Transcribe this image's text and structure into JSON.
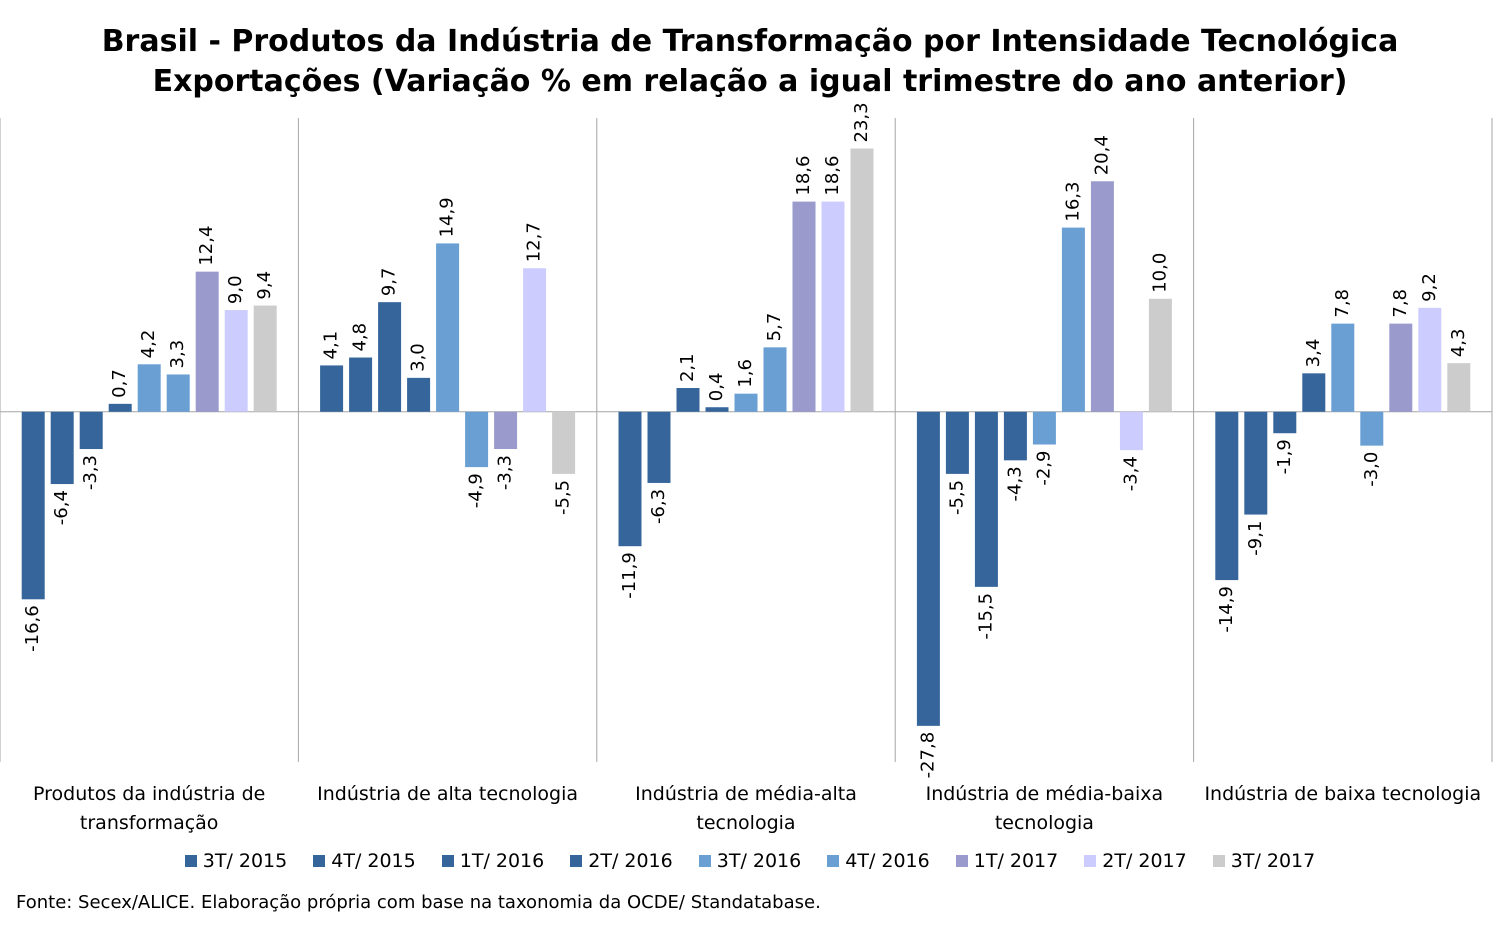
{
  "chart_data": {
    "type": "bar",
    "title": "Brasil - Produtos da Indústria de Transformação por Intensidade Tecnológica",
    "subtitle": "Exportações (Variação % em relação a igual trimestre do ano anterior)",
    "source": "Fonte: Secex/ALICE. Elaboração própria com base na taxonomia da OCDE/ Standatabase.",
    "categories": [
      "Produtos da indústria de transformação",
      "Indústria de alta tecnologia",
      "Indústria de média-alta tecnologia",
      "Indústria de média-baixa tecnologia",
      "Indústria de baixa tecnologia"
    ],
    "ylim": [
      -31,
      26
    ],
    "series": [
      {
        "name": "3T/ 2015",
        "color": "#35659a",
        "values": [
          -16.6,
          4.1,
          -11.9,
          -27.8,
          -14.9
        ],
        "value_labels": [
          "-16,6",
          "4,1",
          "-11,9",
          "-27,8",
          "-14,9"
        ]
      },
      {
        "name": "4T/ 2015",
        "color": "#35659a",
        "values": [
          -6.4,
          4.8,
          -6.3,
          -5.5,
          -9.1
        ],
        "value_labels": [
          "-6,4",
          "4,8",
          "-6,3",
          "-5,5",
          "-9,1"
        ]
      },
      {
        "name": "1T/ 2016",
        "color": "#35659a",
        "values": [
          -3.3,
          9.7,
          2.1,
          -15.5,
          -1.9
        ],
        "value_labels": [
          "-3,3",
          "9,7",
          "2,1",
          "-15,5",
          "-1,9"
        ]
      },
      {
        "name": "2T/ 2016",
        "color": "#35659a",
        "values": [
          0.7,
          3.0,
          0.4,
          -4.3,
          3.4
        ],
        "value_labels": [
          "0,7",
          "3,0",
          "0,4",
          "-4,3",
          "3,4"
        ]
      },
      {
        "name": "3T/ 2016",
        "color": "#6a9fd4",
        "values": [
          4.2,
          14.9,
          1.6,
          -2.9,
          7.8
        ],
        "value_labels": [
          "4,2",
          "14,9",
          "1,6",
          "-2,9",
          "7,8"
        ]
      },
      {
        "name": "4T/ 2016",
        "color": "#6a9fd4",
        "values": [
          3.3,
          -4.9,
          5.7,
          16.3,
          -3.0
        ],
        "value_labels": [
          "3,3",
          "-4,9",
          "5,7",
          "16,3",
          "-3,0"
        ]
      },
      {
        "name": "1T/ 2017",
        "color": "#9a9acc",
        "values": [
          12.4,
          -3.3,
          18.6,
          20.4,
          7.8
        ],
        "value_labels": [
          "12,4",
          "-3,3",
          "18,6",
          "20,4",
          "7,8"
        ]
      },
      {
        "name": "2T/ 2017",
        "color": "#ccccff",
        "values": [
          9.0,
          12.7,
          18.6,
          -3.4,
          9.2
        ],
        "value_labels": [
          "9,0",
          "12,7",
          "18,6",
          "-3,4",
          "9,2"
        ]
      },
      {
        "name": "3T/ 2017",
        "color": "#cccccc",
        "values": [
          9.4,
          -5.5,
          23.3,
          10.0,
          4.3
        ],
        "value_labels": [
          "9,4",
          "-5,5",
          "23,3",
          "10,0",
          "4,3"
        ]
      }
    ]
  }
}
